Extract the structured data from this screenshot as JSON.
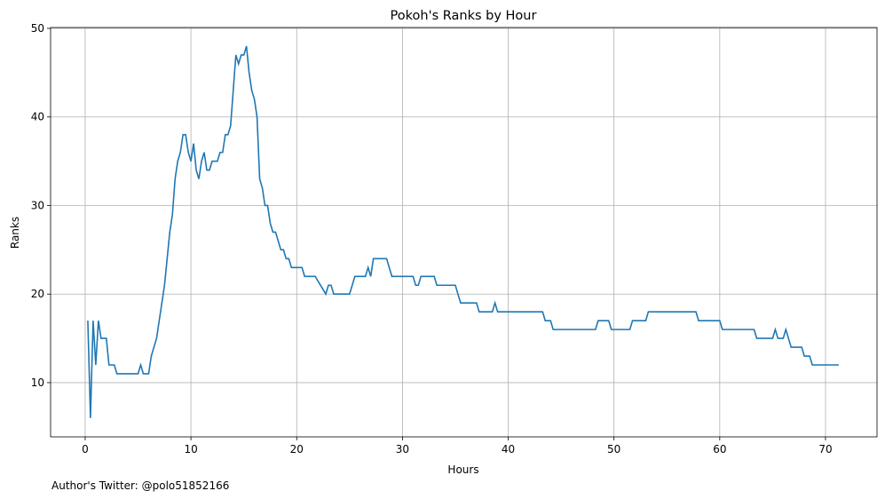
{
  "chart_data": {
    "type": "line",
    "title": "Pokoh's Ranks by Hour",
    "x_label": "Hours",
    "y_label": "Ranks",
    "annotation": "Author's Twitter: @polo51852166",
    "x": [
      0.25,
      0.5,
      0.75,
      1.0,
      1.25,
      1.5,
      2.0,
      2.25,
      2.75,
      3.0,
      5.0,
      5.25,
      5.5,
      6.0,
      6.25,
      6.75,
      7.5,
      8.0,
      8.25,
      8.5,
      8.75,
      9.0,
      9.25,
      9.5,
      9.75,
      10.0,
      10.25,
      10.5,
      10.75,
      11.0,
      11.25,
      11.5,
      11.75,
      12.0,
      12.5,
      12.75,
      13.0,
      13.25,
      13.5,
      13.75,
      14.0,
      14.25,
      14.5,
      14.75,
      15.0,
      15.25,
      15.5,
      15.75,
      16.0,
      16.25,
      16.5,
      16.75,
      17.0,
      17.25,
      17.5,
      17.75,
      18.0,
      18.25,
      18.5,
      18.75,
      19.0,
      19.25,
      19.5,
      20.5,
      20.75,
      21.75,
      22.75,
      23.0,
      23.25,
      23.5,
      25.0,
      25.5,
      26.5,
      26.75,
      27.0,
      27.25,
      28.5,
      29.0,
      31.0,
      31.25,
      31.5,
      31.75,
      33.0,
      33.25,
      35.0,
      35.5,
      37.0,
      37.25,
      38.5,
      38.75,
      39.0,
      43.25,
      43.5,
      44.0,
      44.25,
      48.25,
      48.5,
      49.5,
      49.75,
      51.5,
      51.75,
      53.0,
      53.25,
      57.75,
      58.0,
      60.0,
      60.25,
      63.25,
      63.5,
      65.0,
      65.25,
      65.5,
      66.0,
      66.25,
      66.75,
      67.75,
      68.0,
      68.5,
      68.75,
      71.25
    ],
    "series": [
      {
        "name": "Ranks",
        "color": "#1f77b4",
        "values": [
          17,
          6,
          17,
          12,
          17,
          15,
          15,
          12,
          12,
          11,
          11,
          12,
          11,
          11,
          13,
          15,
          21,
          27,
          29,
          33,
          35,
          36,
          38,
          38,
          36,
          35,
          37,
          34,
          33,
          35,
          36,
          34,
          34,
          35,
          35,
          36,
          36,
          38,
          38,
          39,
          43,
          47,
          46,
          47,
          47,
          48,
          45,
          43,
          42,
          40,
          33,
          32,
          30,
          30,
          28,
          27,
          27,
          26,
          25,
          25,
          24,
          24,
          23,
          23,
          22,
          22,
          20,
          21,
          21,
          20,
          20,
          22,
          22,
          23,
          22,
          24,
          24,
          22,
          22,
          21,
          21,
          22,
          22,
          21,
          21,
          19,
          19,
          18,
          18,
          19,
          18,
          18,
          17,
          17,
          16,
          16,
          17,
          17,
          16,
          16,
          17,
          17,
          18,
          18,
          17,
          17,
          16,
          16,
          15,
          15,
          16,
          15,
          15,
          16,
          14,
          14,
          13,
          13,
          12,
          12
        ]
      }
    ],
    "xlim": [
      -3.27,
      74.87
    ],
    "ylim": [
      3.88,
      50.1
    ],
    "xticks": [
      0,
      10,
      20,
      30,
      40,
      50,
      60,
      70
    ],
    "yticks": [
      10,
      20,
      30,
      40,
      50
    ],
    "grid": true
  }
}
